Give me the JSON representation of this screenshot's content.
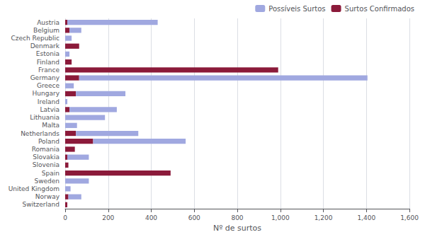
{
  "chart_data": {
    "type": "bar",
    "orientation": "horizontal",
    "stacked": true,
    "xlabel": "Nº de surtos",
    "categories": [
      "Austria",
      "Belgium",
      "Czech Republic",
      "Denmark",
      "Estonia",
      "Finland",
      "France",
      "Germany",
      "Greece",
      "Hungary",
      "Ireland",
      "Latvia",
      "Lithuania",
      "Malta",
      "Netherlands",
      "Poland",
      "Romania",
      "Slovakia",
      "Slovenia",
      "Spain",
      "Sweden",
      "United Kingdom",
      "Norway",
      "Switzerland"
    ],
    "series": [
      {
        "name": "Surtos Confirmados",
        "color": "#8b1a3a",
        "values": [
          10,
          20,
          0,
          65,
          0,
          30,
          990,
          65,
          0,
          50,
          0,
          20,
          0,
          0,
          50,
          130,
          45,
          10,
          15,
          490,
          0,
          0,
          15,
          10
        ]
      },
      {
        "name": "Possíveis Surtos",
        "color": "#a0a8e0",
        "values": [
          420,
          55,
          30,
          0,
          20,
          0,
          0,
          1340,
          40,
          230,
          10,
          220,
          185,
          55,
          290,
          430,
          0,
          100,
          0,
          0,
          110,
          25,
          60,
          0
        ]
      }
    ],
    "xlim": [
      0,
      1600
    ],
    "xticks": [
      0,
      200,
      400,
      600,
      800,
      {
        "value": 1000,
        "label": "1,000"
      },
      {
        "value": 1200,
        "label": "1,200"
      },
      {
        "value": 1400,
        "label": "1,400"
      },
      {
        "value": 1600,
        "label": "1,600"
      }
    ],
    "grid": true,
    "legend": "upper right"
  }
}
